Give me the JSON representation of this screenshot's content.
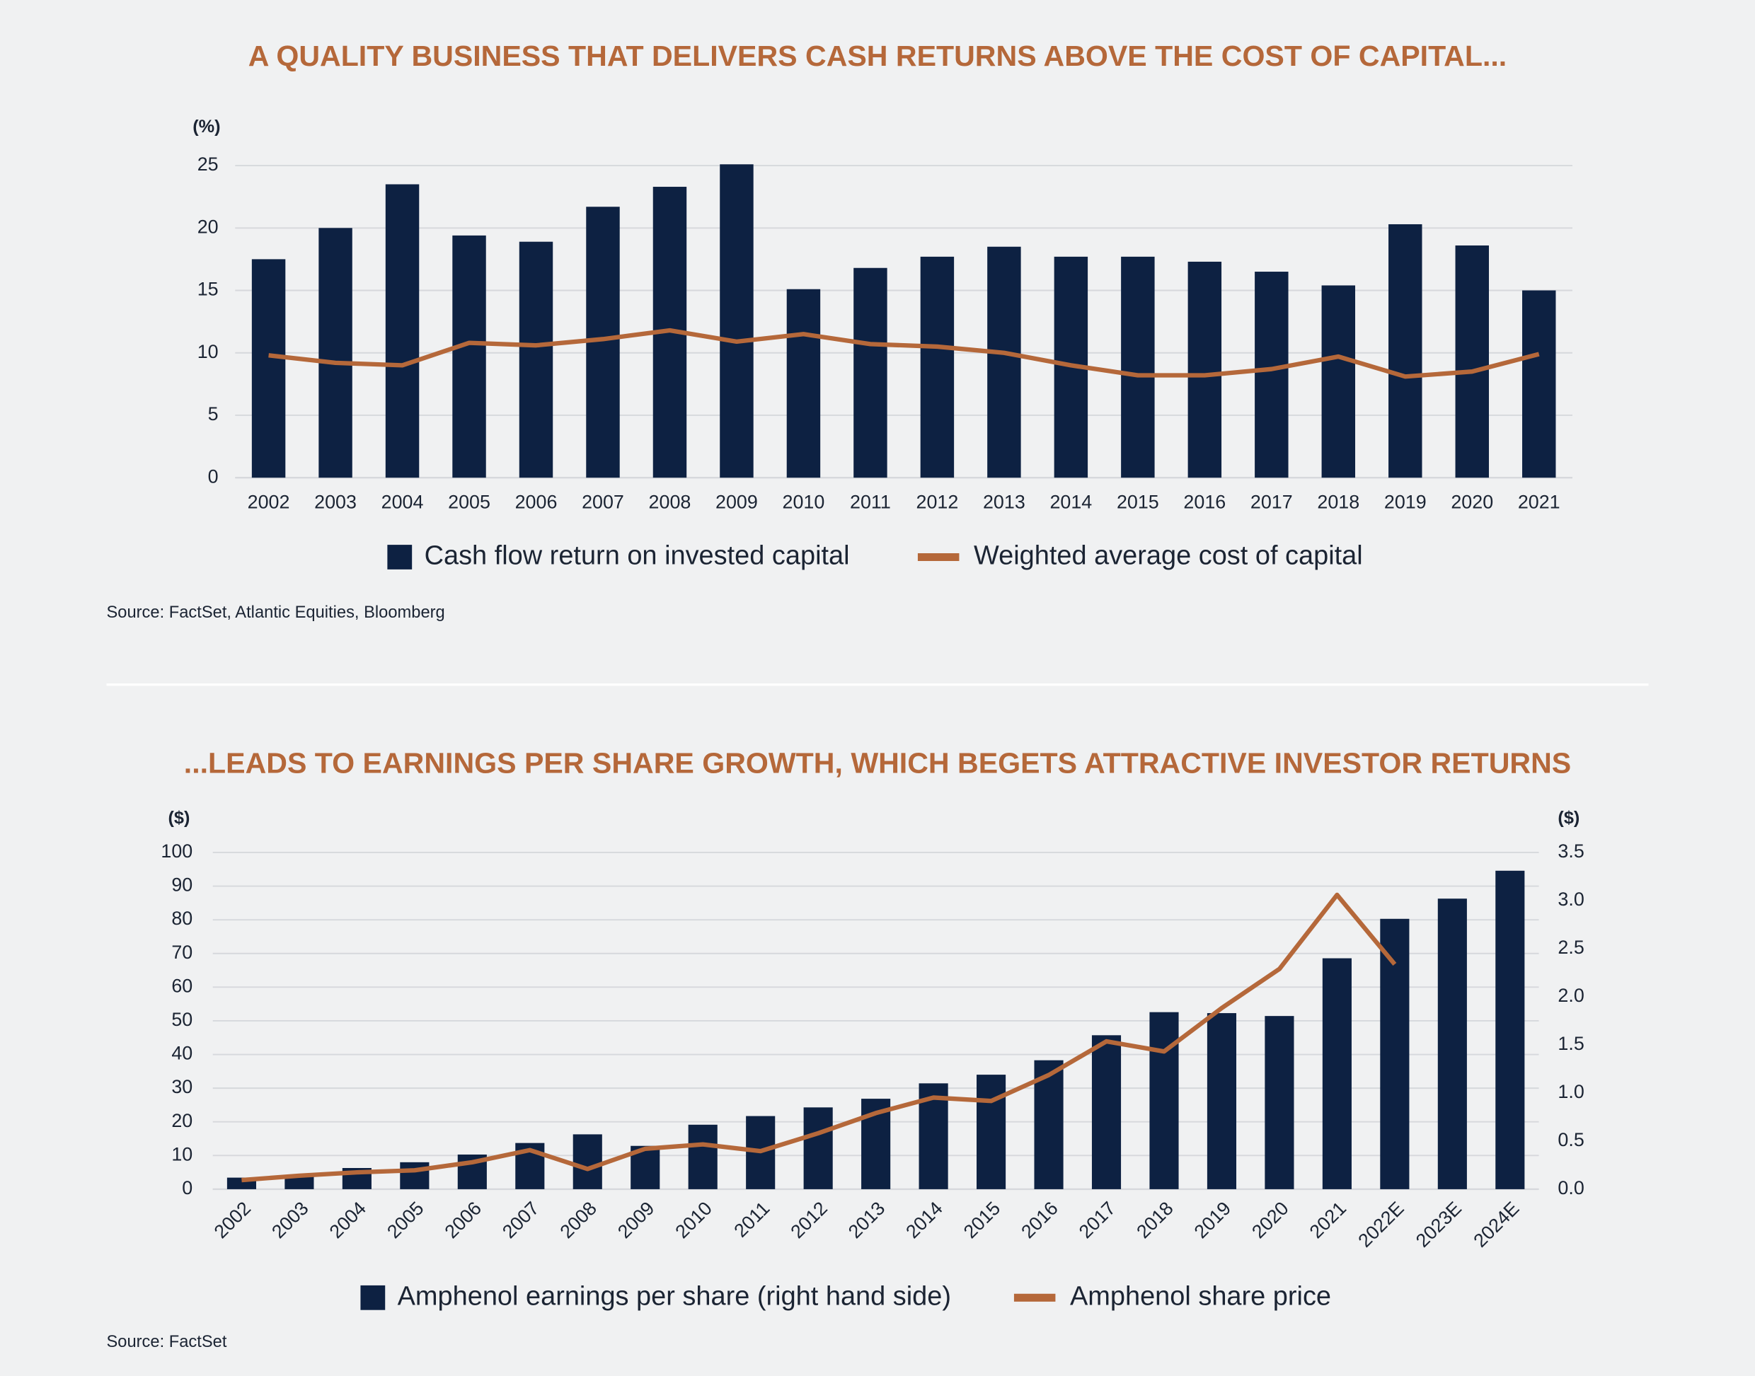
{
  "chart_data": [
    {
      "type": "bar",
      "title": "A QUALITY BUSINESS THAT DELIVERS CASH RETURNS ABOVE THE COST OF CAPITAL...",
      "ylabel": "(%)",
      "categories": [
        "2002",
        "2003",
        "2004",
        "2005",
        "2006",
        "2007",
        "2008",
        "2009",
        "2010",
        "2011",
        "2012",
        "2013",
        "2014",
        "2015",
        "2016",
        "2017",
        "2018",
        "2019",
        "2020",
        "2021"
      ],
      "series": [
        {
          "name": "Cash flow return on invested capital",
          "type": "bar",
          "color": "#0d2142",
          "values": [
            17.5,
            20.0,
            23.5,
            19.4,
            18.9,
            21.7,
            23.3,
            25.1,
            15.1,
            16.8,
            17.7,
            18.5,
            17.7,
            17.7,
            17.3,
            16.5,
            15.4,
            20.3,
            18.6,
            15.0
          ]
        },
        {
          "name": "Weighted average cost of capital",
          "type": "line",
          "color": "#b5683a",
          "values": [
            9.8,
            9.2,
            9.0,
            10.8,
            10.6,
            11.1,
            11.8,
            10.9,
            11.5,
            10.7,
            10.5,
            10.0,
            9.0,
            8.2,
            8.2,
            8.7,
            9.7,
            8.1,
            8.5,
            9.9
          ]
        }
      ],
      "ylim": [
        0,
        25
      ],
      "yticks": [
        0,
        5,
        10,
        15,
        20,
        25
      ],
      "grid": true,
      "source": "Source: FactSet, Atlantic Equities, Bloomberg"
    },
    {
      "type": "bar",
      "title": "...LEADS TO EARNINGS PER SHARE GROWTH, WHICH BEGETS ATTRACTIVE INVESTOR RETURNS",
      "ylabel": "($)",
      "y2label": "($)",
      "categories": [
        "2002",
        "2003",
        "2004",
        "2005",
        "2006",
        "2007",
        "2008",
        "2009",
        "2010",
        "2011",
        "2012",
        "2013",
        "2014",
        "2015",
        "2016",
        "2017",
        "2018",
        "2019",
        "2020",
        "2021",
        "2022E",
        "2023E",
        "2024E"
      ],
      "series": [
        {
          "name": "Amphenol earnings per share (right hand side)",
          "type": "bar",
          "axis": "y2",
          "color": "#0d2142",
          "values": [
            0.12,
            0.15,
            0.22,
            0.28,
            0.36,
            0.48,
            0.57,
            0.45,
            0.67,
            0.76,
            0.85,
            0.94,
            1.1,
            1.19,
            1.34,
            1.6,
            1.84,
            1.83,
            1.8,
            2.4,
            2.81,
            3.02,
            3.31
          ]
        },
        {
          "name": "Amphenol share price",
          "type": "line",
          "color": "#b5683a",
          "values": [
            2.7,
            4.0,
            5.0,
            5.6,
            8.0,
            11.6,
            6.0,
            12.0,
            13.3,
            11.3,
            16.6,
            22.6,
            27.2,
            26.2,
            33.9,
            43.9,
            40.9,
            53.8,
            65.4,
            87.4,
            66.8,
            null,
            null
          ]
        }
      ],
      "ylim": [
        0,
        100
      ],
      "yticks": [
        0,
        10,
        20,
        30,
        40,
        50,
        60,
        70,
        80,
        90,
        100
      ],
      "y2lim": [
        0,
        3.5
      ],
      "y2ticks": [
        {
          "value": 0,
          "label": "0.0"
        },
        0.5,
        {
          "value": 1,
          "label": "1.0"
        },
        1.5,
        {
          "value": 2,
          "label": "2.0"
        },
        2.5,
        {
          "value": 3,
          "label": "3.0"
        },
        3.5
      ],
      "grid": true,
      "source": "Source: FactSet"
    }
  ]
}
